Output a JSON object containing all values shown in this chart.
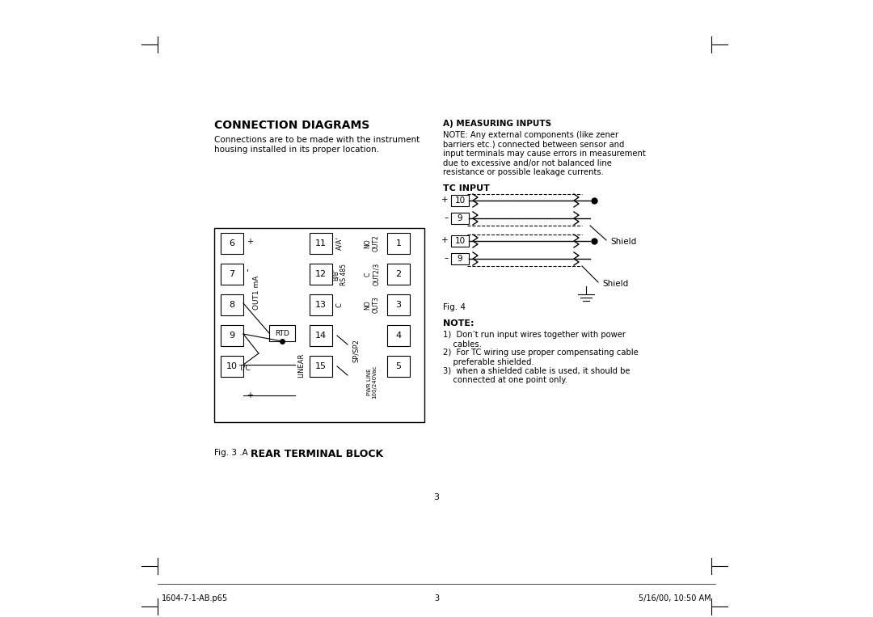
{
  "bg_color": "#ffffff",
  "title_conn": "CONNECTION DIAGRAMS",
  "title_measuring": "A) MEASURING INPUTS",
  "note_label": "NOTE",
  "tc_input_label": "TC INPUT",
  "conn_body": "Connections are to be made with the instrument\nhousing installed in its proper location.",
  "measuring_note": "NOTE: Any external components (like zener\nbarriers etc.) connected between sensor and\ninput terminals may cause errors in measurement\ndue to excessive and/or not balanced line\nresistance or possible leakage currents.",
  "notes": [
    "Don’t run input wires together with power\n    cables.",
    "For TC wiring use proper compensating cable\n    preferable shielded.",
    "when a shielded cable is used, it should be\n    connected at one point only."
  ],
  "fig3_label": "Fig. 3 .A",
  "fig3_title": "REAR TERMINAL BLOCK",
  "fig4_label": "Fig. 4",
  "footer_left": "1604-7-1-AB.p65",
  "footer_center": "3",
  "footer_right": "5/16/00, 10:50 AM",
  "page_number": "3",
  "terminal_rows": [
    {
      "left": "6",
      "left_plus": true,
      "mid": "11",
      "mid_label": "A/A'",
      "right_col": "NO\nOUT2",
      "right": "1"
    },
    {
      "left": "7",
      "left_dot": true,
      "mid": "12",
      "mid_label": "B/B'\nRS 485",
      "right_col": "C\nOUT2/3",
      "right": "2"
    },
    {
      "left": "8",
      "mid": "13",
      "mid_label": "C",
      "right_col": "NO\nOUT3",
      "right": "3"
    },
    {
      "left": "9",
      "mid": "14",
      "right_col": "PWR LINE\n100/240Vac",
      "right": "4"
    },
    {
      "left": "10",
      "left_plus2": true,
      "mid": "15",
      "mid_label": "SP/SP2",
      "right": "5"
    }
  ],
  "rtd_label": "RTD",
  "tc_label": "T/C",
  "linear_label": "LINEAR",
  "out1ma_label": "OUT1 mA"
}
